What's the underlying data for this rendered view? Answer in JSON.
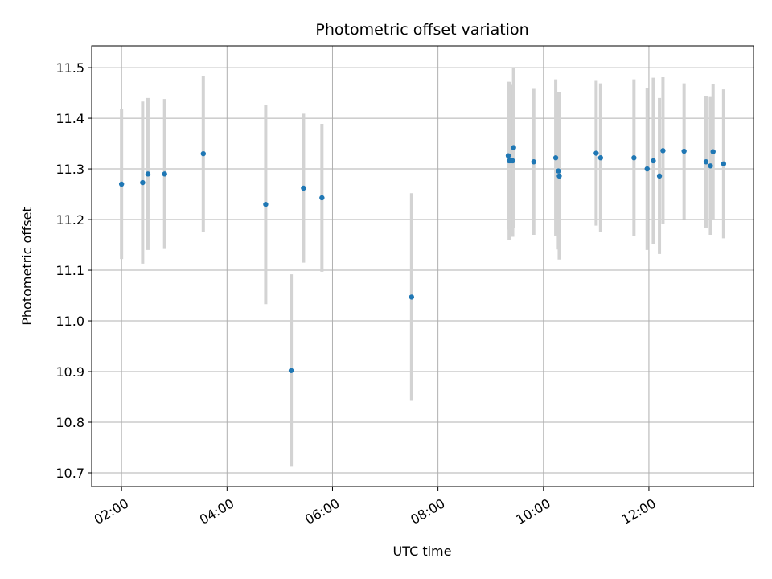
{
  "chart_data": {
    "type": "scatter",
    "title": "Photometric offset variation",
    "xlabel": "UTC time",
    "ylabel": "Photometric offset",
    "x_axis": "time",
    "xlim": [
      "01:26",
      "13:59"
    ],
    "ylim": [
      10.673,
      11.543
    ],
    "xticks": [
      "02:00",
      "04:00",
      "06:00",
      "08:00",
      "10:00",
      "12:00"
    ],
    "yticks": [
      10.7,
      10.8,
      10.9,
      11.0,
      11.1,
      11.2,
      11.3,
      11.4,
      11.5
    ],
    "ytick_labels": [
      "10.7",
      "10.8",
      "10.9",
      "11.0",
      "11.1",
      "11.2",
      "11.3",
      "11.4",
      "11.5"
    ],
    "grid": true,
    "legend": "none",
    "marker_color": "#1f77b4",
    "errorbar_color": "#d3d3d3",
    "points": [
      {
        "time": "02:00",
        "y": 11.27,
        "err": 0.148
      },
      {
        "time": "02:24",
        "y": 11.273,
        "err": 0.16
      },
      {
        "time": "02:30",
        "y": 11.29,
        "err": 0.15
      },
      {
        "time": "02:49",
        "y": 11.29,
        "err": 0.148
      },
      {
        "time": "03:33",
        "y": 11.33,
        "err": 0.154
      },
      {
        "time": "04:44",
        "y": 11.23,
        "err": 0.197
      },
      {
        "time": "05:13",
        "y": 10.902,
        "err": 0.19
      },
      {
        "time": "05:27",
        "y": 11.262,
        "err": 0.147
      },
      {
        "time": "05:48",
        "y": 11.243,
        "err": 0.146
      },
      {
        "time": "07:30",
        "y": 11.047,
        "err": 0.205
      },
      {
        "time": "09:20",
        "y": 11.326,
        "err": 0.146
      },
      {
        "time": "09:21",
        "y": 11.316,
        "err": 0.156
      },
      {
        "time": "09:23",
        "y": 11.316,
        "err": 0.143
      },
      {
        "time": "09:25",
        "y": 11.316,
        "err": 0.15
      },
      {
        "time": "09:26",
        "y": 11.342,
        "err": 0.158
      },
      {
        "time": "09:49",
        "y": 11.314,
        "err": 0.144
      },
      {
        "time": "10:14",
        "y": 11.322,
        "err": 0.155
      },
      {
        "time": "10:17",
        "y": 11.296,
        "err": 0.155
      },
      {
        "time": "10:18",
        "y": 11.286,
        "err": 0.165
      },
      {
        "time": "11:00",
        "y": 11.331,
        "err": 0.143
      },
      {
        "time": "11:05",
        "y": 11.322,
        "err": 0.147
      },
      {
        "time": "11:43",
        "y": 11.322,
        "err": 0.155
      },
      {
        "time": "11:58",
        "y": 11.3,
        "err": 0.16
      },
      {
        "time": "12:05",
        "y": 11.316,
        "err": 0.164
      },
      {
        "time": "12:12",
        "y": 11.286,
        "err": 0.154
      },
      {
        "time": "12:16",
        "y": 11.336,
        "err": 0.145
      },
      {
        "time": "12:40",
        "y": 11.335,
        "err": 0.134
      },
      {
        "time": "13:05",
        "y": 11.314,
        "err": 0.13
      },
      {
        "time": "13:10",
        "y": 11.306,
        "err": 0.136
      },
      {
        "time": "13:13",
        "y": 11.334,
        "err": 0.134
      },
      {
        "time": "13:25",
        "y": 11.31,
        "err": 0.147
      }
    ]
  }
}
